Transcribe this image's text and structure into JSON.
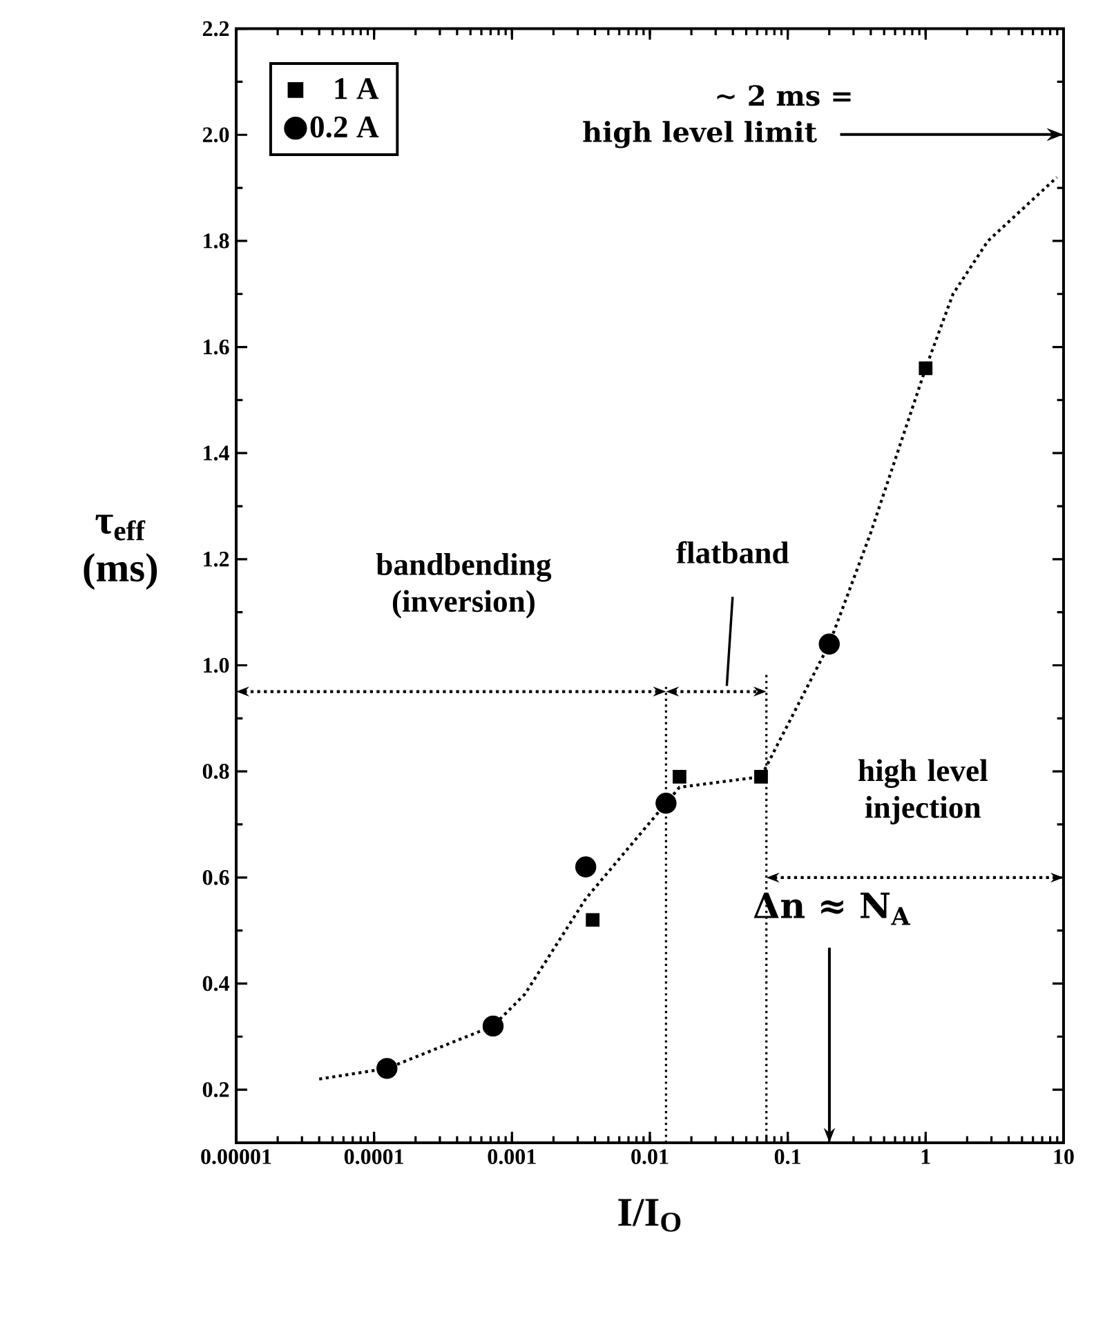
{
  "chart_data": {
    "type": "scatter",
    "xlabel": "I/I$_{O}$",
    "ylabel": "τ$_{eff}$ (ms)",
    "log": "x",
    "legend": "top left",
    "xlim": [
      1e-05,
      10
    ],
    "ylim": [
      0.1,
      2.2
    ],
    "xticks": [
      {
        "value": 1e-05,
        "label": "0.00001"
      },
      {
        "value": 0.0001,
        "label": "0.0001"
      },
      {
        "value": 0.001,
        "label": "0.001"
      },
      {
        "value": 0.01,
        "label": "0.01"
      },
      {
        "value": 0.1,
        "label": "0.1"
      },
      {
        "value": 1,
        "label": "1"
      },
      {
        "value": 10,
        "label": "10"
      }
    ],
    "yticks": [
      {
        "value": 0.2,
        "label": "0.2"
      },
      {
        "value": 0.4,
        "label": "0.4"
      },
      {
        "value": 0.6,
        "label": "0.6"
      },
      {
        "value": 0.8,
        "label": "0.8"
      },
      {
        "value": 1.0,
        "label": "1.0"
      },
      {
        "value": 1.2,
        "label": "1.2"
      },
      {
        "value": 1.4,
        "label": "1.4"
      },
      {
        "value": 1.6,
        "label": "1.6"
      },
      {
        "value": 1.8,
        "label": "1.8"
      },
      {
        "value": 2.0,
        "label": "2.0"
      },
      {
        "value": 2.2,
        "label": "2.2"
      }
    ],
    "series": [
      {
        "name": "1 A",
        "marker": "square",
        "color": "#000000",
        "x": [
          0.00385,
          0.0164,
          0.064,
          1
        ],
        "values": [
          0.52,
          0.79,
          0.79,
          1.56
        ]
      },
      {
        "name": "0.2 A",
        "marker": "circle",
        "color": "#000000",
        "x": [
          0.000124,
          0.00073,
          0.00343,
          0.0131,
          0.2
        ],
        "values": [
          0.24,
          0.32,
          0.62,
          0.74,
          1.04
        ]
      },
      {
        "type": "line",
        "line_style": "dotted",
        "color": "#000000",
        "x": [
          4e-05,
          0.000124,
          0.00073,
          0.00124,
          0.00343,
          0.0131,
          0.0164,
          0.064,
          0.2,
          0.4,
          1,
          1.58,
          2.83,
          8.95
        ],
        "values": [
          0.22,
          0.24,
          0.32,
          0.38,
          0.56,
          0.74,
          0.77,
          0.79,
          1.04,
          1.25,
          1.56,
          1.7,
          1.8,
          1.92
        ]
      }
    ],
    "ref_lines": [
      {
        "axis": "x",
        "value": 0.0131,
        "line_style": "dotted"
      },
      {
        "axis": "x",
        "value": 0.07,
        "line_style": "dotted"
      }
    ],
    "annotations": [
      "bandbending (inversion)",
      "flatband",
      "high level injection",
      "∼ 2 ms =",
      "high level limit",
      "Δn ≈ N$_{A}$"
    ]
  }
}
